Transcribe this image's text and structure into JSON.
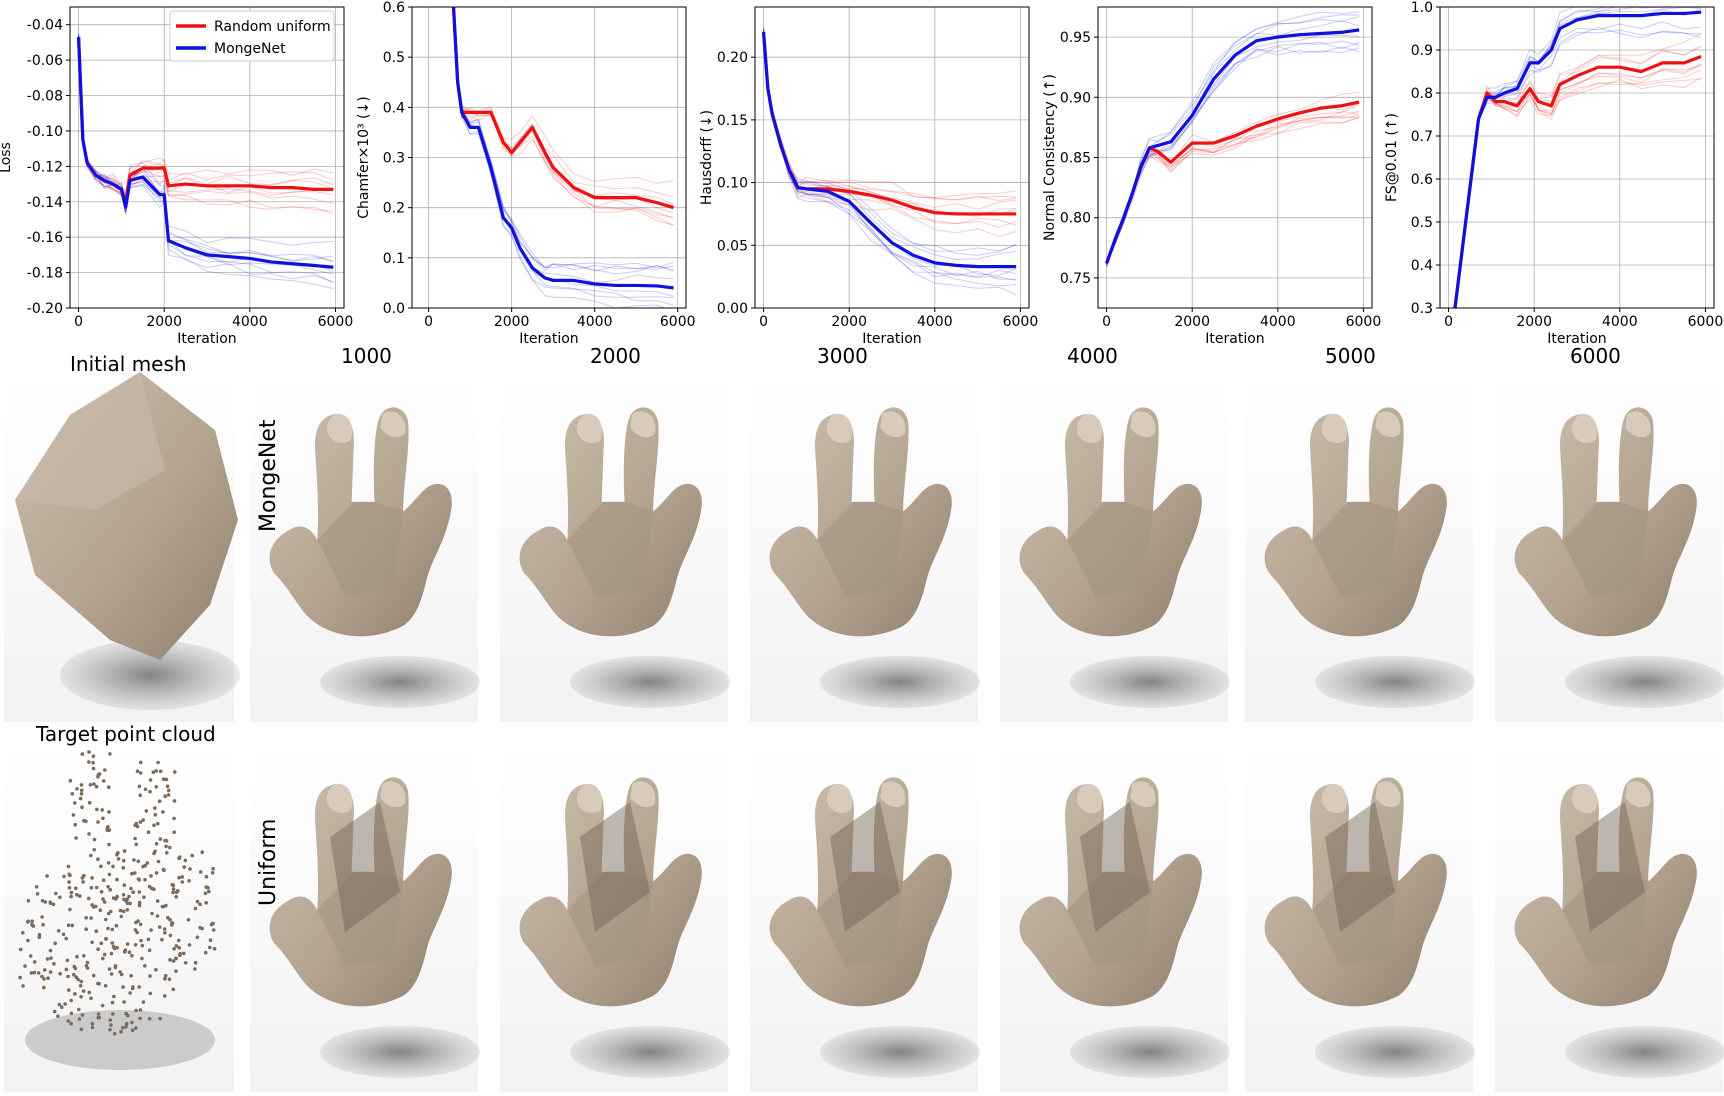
{
  "chart_data": [
    {
      "type": "line",
      "title": "",
      "xlabel": "Iteration",
      "ylabel": "Loss",
      "xlim": [
        -200,
        6200
      ],
      "ylim": [
        -0.2,
        -0.03
      ],
      "xticks": [
        0,
        2000,
        4000,
        6000
      ],
      "yticks": [
        -0.2,
        -0.18,
        -0.16,
        -0.14,
        -0.12,
        -0.1,
        -0.08,
        -0.06,
        -0.04
      ],
      "ytick_labels": [
        "-0.20",
        "-0.18",
        "-0.16",
        "-0.14",
        "-0.12",
        "-0.10",
        "-0.08",
        "-0.06",
        "-0.04"
      ],
      "grid": true,
      "legend": "top-right",
      "x": [
        0,
        100,
        200,
        400,
        600,
        800,
        1000,
        1100,
        1200,
        1500,
        1900,
        2000,
        2100,
        2500,
        3000,
        3500,
        4000,
        4500,
        5000,
        5500,
        5950
      ],
      "series": [
        {
          "name": "Random uniform",
          "color": "#ee1111",
          "values": [
            -0.047,
            -0.105,
            -0.118,
            -0.125,
            -0.128,
            -0.13,
            -0.133,
            -0.14,
            -0.125,
            -0.121,
            -0.121,
            -0.121,
            -0.131,
            -0.13,
            -0.131,
            -0.131,
            -0.131,
            -0.132,
            -0.132,
            -0.133,
            -0.133
          ]
        },
        {
          "name": "MongeNet",
          "color": "#1111dd",
          "values": [
            -0.047,
            -0.105,
            -0.118,
            -0.125,
            -0.128,
            -0.13,
            -0.133,
            -0.143,
            -0.128,
            -0.126,
            -0.136,
            -0.136,
            -0.162,
            -0.166,
            -0.17,
            -0.171,
            -0.172,
            -0.174,
            -0.175,
            -0.176,
            -0.177
          ]
        }
      ]
    },
    {
      "type": "line",
      "title": "",
      "xlabel": "Iteration",
      "ylabel": "Chamfer×10³ (↓)",
      "xlim": [
        -400,
        6200
      ],
      "ylim": [
        0.0,
        0.6
      ],
      "xticks": [
        0,
        2000,
        4000,
        6000
      ],
      "yticks": [
        0.0,
        0.1,
        0.2,
        0.3,
        0.4,
        0.5,
        0.6
      ],
      "ytick_labels": [
        "0.0",
        "0.1",
        "0.2",
        "0.3",
        "0.4",
        "0.5",
        "0.6"
      ],
      "grid": true,
      "x": [
        600,
        700,
        800,
        1000,
        1200,
        1500,
        1800,
        2000,
        2200,
        2500,
        2800,
        3000,
        3500,
        4000,
        4500,
        5000,
        5500,
        5900
      ],
      "series": [
        {
          "name": "Random uniform",
          "color": "#ee1111",
          "values": [
            0.6,
            0.45,
            0.39,
            0.39,
            0.39,
            0.39,
            0.33,
            0.31,
            0.33,
            0.36,
            0.31,
            0.28,
            0.24,
            0.22,
            0.22,
            0.22,
            0.21,
            0.2
          ]
        },
        {
          "name": "MongeNet",
          "color": "#1111dd",
          "values": [
            0.6,
            0.45,
            0.39,
            0.36,
            0.36,
            0.28,
            0.18,
            0.16,
            0.12,
            0.08,
            0.06,
            0.055,
            0.055,
            0.048,
            0.045,
            0.045,
            0.044,
            0.04
          ]
        }
      ]
    },
    {
      "type": "line",
      "title": "",
      "xlabel": "Iteration",
      "ylabel": "Hausdorff (↓)",
      "xlim": [
        -200,
        6200
      ],
      "ylim": [
        0.0,
        0.24
      ],
      "xticks": [
        0,
        2000,
        4000,
        6000
      ],
      "yticks": [
        0.0,
        0.05,
        0.1,
        0.15,
        0.2
      ],
      "ytick_labels": [
        "0.00",
        "0.05",
        "0.10",
        "0.15",
        "0.20"
      ],
      "grid": true,
      "x": [
        0,
        100,
        200,
        400,
        600,
        800,
        1000,
        1500,
        2000,
        2500,
        3000,
        3500,
        4000,
        4500,
        5000,
        5500,
        5900
      ],
      "series": [
        {
          "name": "Random uniform",
          "color": "#ee1111",
          "values": [
            0.22,
            0.175,
            0.155,
            0.13,
            0.11,
            0.096,
            0.095,
            0.095,
            0.093,
            0.09,
            0.086,
            0.08,
            0.076,
            0.075,
            0.075,
            0.075,
            0.075
          ]
        },
        {
          "name": "MongeNet",
          "color": "#1111dd",
          "values": [
            0.22,
            0.175,
            0.155,
            0.13,
            0.11,
            0.096,
            0.095,
            0.093,
            0.085,
            0.068,
            0.052,
            0.042,
            0.036,
            0.034,
            0.033,
            0.033,
            0.033
          ]
        }
      ]
    },
    {
      "type": "line",
      "title": "",
      "xlabel": "Iteration",
      "ylabel": "Normal Consistency (↑)",
      "xlim": [
        -200,
        6200
      ],
      "ylim": [
        0.725,
        0.975
      ],
      "xticks": [
        0,
        2000,
        4000,
        6000
      ],
      "yticks": [
        0.75,
        0.8,
        0.85,
        0.9,
        0.95
      ],
      "ytick_labels": [
        "0.75",
        "0.80",
        "0.85",
        "0.90",
        "0.95"
      ],
      "grid": true,
      "x": [
        0,
        200,
        400,
        600,
        800,
        1000,
        1200,
        1500,
        2000,
        2500,
        3000,
        3500,
        4000,
        4500,
        5000,
        5500,
        5900
      ],
      "series": [
        {
          "name": "Random uniform",
          "color": "#ee1111",
          "values": [
            0.762,
            0.782,
            0.8,
            0.82,
            0.842,
            0.858,
            0.855,
            0.846,
            0.862,
            0.862,
            0.868,
            0.876,
            0.882,
            0.887,
            0.891,
            0.893,
            0.896
          ]
        },
        {
          "name": "MongeNet",
          "color": "#1111dd",
          "values": [
            0.762,
            0.782,
            0.8,
            0.82,
            0.842,
            0.858,
            0.86,
            0.863,
            0.885,
            0.915,
            0.935,
            0.947,
            0.95,
            0.952,
            0.953,
            0.954,
            0.956
          ]
        }
      ]
    },
    {
      "type": "line",
      "title": "",
      "xlabel": "Iteration",
      "ylabel": "FS@0.01 (↑)",
      "xlim": [
        -200,
        6200
      ],
      "ylim": [
        0.3,
        1.0
      ],
      "xticks": [
        0,
        2000,
        4000,
        6000
      ],
      "yticks": [
        0.3,
        0.4,
        0.5,
        0.6,
        0.7,
        0.8,
        0.9,
        1.0
      ],
      "ytick_labels": [
        "0.3",
        "0.4",
        "0.5",
        "0.6",
        "0.7",
        "0.8",
        "0.9",
        "1.0"
      ],
      "grid": true,
      "x": [
        150,
        300,
        500,
        700,
        900,
        1100,
        1300,
        1600,
        1900,
        2100,
        2400,
        2600,
        3000,
        3500,
        4000,
        4500,
        5000,
        5500,
        5900
      ],
      "series": [
        {
          "name": "Random uniform",
          "color": "#ee1111",
          "values": [
            0.3,
            0.42,
            0.58,
            0.74,
            0.8,
            0.78,
            0.78,
            0.77,
            0.81,
            0.78,
            0.77,
            0.82,
            0.84,
            0.86,
            0.86,
            0.85,
            0.87,
            0.87,
            0.885
          ]
        },
        {
          "name": "MongeNet",
          "color": "#1111dd",
          "values": [
            0.3,
            0.42,
            0.58,
            0.74,
            0.79,
            0.79,
            0.8,
            0.81,
            0.87,
            0.87,
            0.9,
            0.95,
            0.97,
            0.98,
            0.98,
            0.98,
            0.985,
            0.985,
            0.988
          ]
        }
      ]
    }
  ],
  "figure": {
    "initial_label": "Initial mesh",
    "target_label": "Target point cloud",
    "iteration_labels": [
      "1000",
      "2000",
      "3000",
      "4000",
      "5000",
      "6000"
    ],
    "row_labels": [
      "MongeNet",
      "Uniform"
    ],
    "mesh_color": "#b6a694",
    "shadow_color": "#8a8a8a"
  }
}
